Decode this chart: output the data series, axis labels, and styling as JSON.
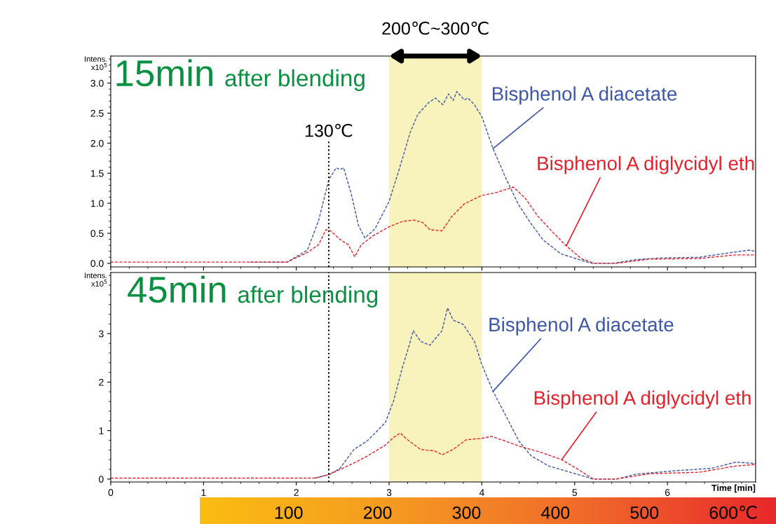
{
  "chart_data": [
    {
      "type": "line",
      "annotations": [
        "15min",
        "after blending"
      ],
      "ylabel": "Intens.\nx10$^{5}$",
      "xlim": [
        0,
        6.95
      ],
      "xticks": [
        0,
        1,
        2,
        3,
        4,
        5,
        6
      ],
      "ylim": [
        -0.06,
        3.45
      ],
      "yticks": [
        {
          "value": 0,
          "label": "0.0"
        },
        {
          "value": 0.5,
          "label": "0.5"
        },
        {
          "value": 1,
          "label": "1.0"
        },
        {
          "value": 1.5,
          "label": "1.5"
        },
        {
          "value": 2,
          "label": "2.0"
        },
        {
          "value": 2.5,
          "label": "2.5"
        },
        {
          "value": 3,
          "label": "3.0"
        }
      ],
      "tick_labels": "y",
      "line_style": "dashed",
      "ref_lines": [
        {
          "axis": "x",
          "value": 2.35,
          "label": "130℃",
          "color": "#000000",
          "line_style": "dotted"
        }
      ],
      "bands": [
        {
          "axis": "x",
          "from": 3,
          "to": 4,
          "label": "200℃~300℃",
          "color": "#f8f3bd"
        }
      ],
      "series": [
        {
          "name": "Bisphenol A diacetate",
          "color": "#3f57a8",
          "x": [
            1.5,
            1.9,
            2.12,
            2.24,
            2.35,
            2.43,
            2.47,
            2.51,
            2.59,
            2.67,
            2.74,
            2.85,
            3.0,
            3.11,
            3.23,
            3.31,
            3.43,
            3.5,
            3.58,
            3.64,
            3.69,
            3.73,
            3.81,
            3.85,
            3.92,
            4.0,
            4.12,
            4.26,
            4.39,
            4.53,
            4.66,
            4.85,
            5.01,
            5.18,
            5.42,
            5.66,
            5.93,
            6.34,
            6.6,
            6.88,
            6.95
          ],
          "values": [
            0.02,
            0.02,
            0.22,
            0.71,
            1.39,
            1.59,
            1.56,
            1.59,
            1.17,
            0.63,
            0.42,
            0.58,
            1.03,
            1.57,
            2.19,
            2.48,
            2.68,
            2.75,
            2.64,
            2.82,
            2.71,
            2.86,
            2.72,
            2.75,
            2.64,
            2.44,
            1.91,
            1.41,
            0.99,
            0.66,
            0.39,
            0.16,
            0.08,
            0.0,
            0.0,
            0.06,
            0.09,
            0.1,
            0.16,
            0.22,
            0.2
          ]
        },
        {
          "name": "Bisphenol A diglycidyl eth",
          "color": "#e8202a",
          "x": [
            0,
            0.5,
            1,
            1.5,
            1.9,
            2.12,
            2.24,
            2.32,
            2.37,
            2.47,
            2.56,
            2.63,
            2.7,
            2.82,
            3.0,
            3.15,
            3.27,
            3.36,
            3.44,
            3.57,
            3.67,
            3.81,
            4.0,
            4.16,
            4.34,
            4.47,
            4.6,
            4.75,
            4.91,
            5.07,
            5.21,
            5.45,
            5.8,
            6.34,
            6.73,
            6.95
          ],
          "values": [
            0.02,
            0.02,
            0.02,
            0.02,
            0.02,
            0.18,
            0.31,
            0.56,
            0.54,
            0.4,
            0.31,
            0.11,
            0.31,
            0.45,
            0.61,
            0.7,
            0.72,
            0.68,
            0.56,
            0.54,
            0.77,
            0.99,
            1.13,
            1.18,
            1.27,
            1.08,
            0.79,
            0.54,
            0.29,
            0.08,
            0.0,
            0.0,
            0.07,
            0.08,
            0.14,
            0.14
          ]
        }
      ]
    },
    {
      "type": "line",
      "annotations": [
        "45min",
        "after blending"
      ],
      "ylabel": "Intens.\nx10$^{5}$",
      "xlabel": "Time [min]",
      "xlim": [
        0,
        6.95
      ],
      "xticks": [
        0,
        1,
        2,
        3,
        4,
        5,
        6
      ],
      "ylim": [
        -0.06,
        4.26
      ],
      "yticks": [
        0,
        1,
        2,
        3
      ],
      "x2lim": [
        -100,
        625
      ],
      "x2ticks": [
        100,
        200,
        300,
        400,
        500,
        {
          "value": 600,
          "label": "600℃"
        }
      ],
      "line_style": "dashed",
      "ref_lines": [
        {
          "axis": "x",
          "value": 2.35,
          "color": "#000000",
          "line_style": "dotted"
        }
      ],
      "bands": [
        {
          "axis": "x",
          "from": 3,
          "to": 4,
          "color": "#f8f3bd"
        }
      ],
      "series": [
        {
          "name": "Bisphenol A diacetate",
          "color": "#3f57a8",
          "x": [
            2.2,
            2.35,
            2.47,
            2.62,
            2.76,
            2.85,
            2.96,
            3.05,
            3.14,
            3.22,
            3.26,
            3.34,
            3.44,
            3.57,
            3.63,
            3.69,
            3.8,
            3.92,
            4.0,
            4.12,
            4.26,
            4.4,
            4.53,
            4.72,
            4.99,
            5.2,
            5.45,
            5.66,
            6.07,
            6.47,
            6.74,
            6.95
          ],
          "values": [
            0.02,
            0.09,
            0.22,
            0.61,
            0.78,
            0.95,
            1.17,
            1.62,
            2.28,
            2.78,
            3.06,
            2.84,
            2.76,
            3.06,
            3.53,
            3.28,
            3.19,
            2.84,
            2.36,
            1.81,
            1.3,
            0.78,
            0.48,
            0.27,
            0.12,
            0.0,
            0.0,
            0.1,
            0.17,
            0.22,
            0.35,
            0.32
          ]
        },
        {
          "name": "Bisphenol A diglycidyl eth",
          "color": "#e8202a",
          "x": [
            0,
            0.5,
            1,
            1.5,
            2,
            2.2,
            2.35,
            2.62,
            2.76,
            2.96,
            3.05,
            3.12,
            3.18,
            3.34,
            3.49,
            3.57,
            3.69,
            3.83,
            4.0,
            4.1,
            4.23,
            4.4,
            4.64,
            4.86,
            5.02,
            5.2,
            5.45,
            5.8,
            6.34,
            6.74,
            6.95
          ],
          "values": [
            0.02,
            0.02,
            0.02,
            0.02,
            0.02,
            0.02,
            0.09,
            0.33,
            0.47,
            0.7,
            0.86,
            0.95,
            0.84,
            0.61,
            0.58,
            0.5,
            0.61,
            0.81,
            0.84,
            0.88,
            0.8,
            0.68,
            0.55,
            0.4,
            0.22,
            0.0,
            0.0,
            0.11,
            0.14,
            0.27,
            0.3
          ]
        }
      ]
    }
  ]
}
